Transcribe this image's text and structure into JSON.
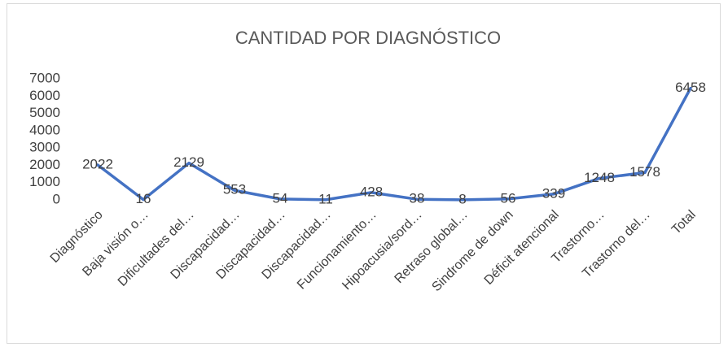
{
  "chart_data": {
    "type": "line",
    "title": "CANTIDAD POR DIAGNÓSTICO",
    "categories": [
      "Diagnóstico",
      "Baja visión o…",
      "Dificultades del…",
      "Discapacidad…",
      "Discapacidad…",
      "Discapacidad…",
      "Funcionamiento…",
      "Hipoacusia/sord…",
      "Retraso global…",
      "Sindrome de down",
      "Déficit atencional",
      "Trastorno…",
      "Trastorno del…",
      "Total"
    ],
    "values": [
      2022,
      16,
      2129,
      553,
      54,
      11,
      428,
      38,
      8,
      56,
      339,
      1248,
      1578,
      6458
    ],
    "color": "#4472c4",
    "ylim": [
      0,
      7000
    ],
    "yticks": [
      0,
      1000,
      2000,
      3000,
      4000,
      5000,
      6000,
      7000
    ],
    "grid": false
  }
}
